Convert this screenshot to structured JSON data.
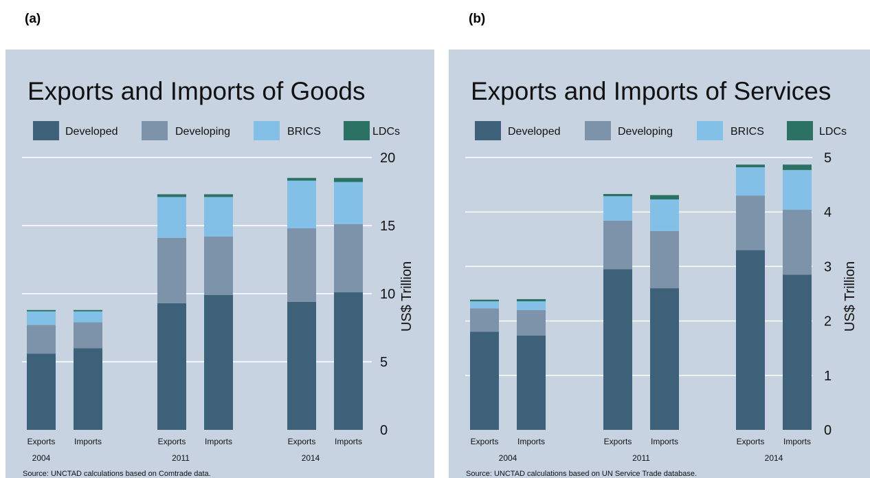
{
  "panels": [
    {
      "label": "(a)",
      "source": "Source: UNCTAD calculations based on Comtrade data.",
      "colors": {
        "Developed": "#3d6179",
        "Developing": "#7c93a9",
        "BRICS": "#83c0e8",
        "LDCs": "#2b7265"
      }
    },
    {
      "label": "(b)",
      "source": "Source: UNCTAD calculations based on UN Service Trade database.",
      "colors": {
        "Developed": "#3d6179",
        "Developing": "#7c93a9",
        "BRICS": "#83c0e8",
        "LDCs": "#2b7265"
      }
    }
  ],
  "chart_data": [
    {
      "type": "bar",
      "stacked": true,
      "title": "Exports and Imports of Goods",
      "ylabel": "US$ Trillion",
      "ylim": [
        0,
        20
      ],
      "yticks": [
        0,
        5,
        10,
        15,
        20
      ],
      "grid": true,
      "legend_position": "top",
      "categories": [
        "Exports",
        "Imports",
        "Exports",
        "Imports",
        "Exports",
        "Imports"
      ],
      "groups": [
        "2004",
        "2011",
        "2014"
      ],
      "series": [
        {
          "name": "Developed",
          "values": [
            5.6,
            6.0,
            9.3,
            9.9,
            9.4,
            10.1
          ]
        },
        {
          "name": "Developing",
          "values": [
            2.1,
            1.9,
            4.8,
            4.3,
            5.4,
            5.0
          ]
        },
        {
          "name": "BRICS",
          "values": [
            1.0,
            0.8,
            3.0,
            2.9,
            3.5,
            3.1
          ]
        },
        {
          "name": "LDCs",
          "values": [
            0.1,
            0.1,
            0.2,
            0.2,
            0.2,
            0.3
          ]
        }
      ]
    },
    {
      "type": "bar",
      "stacked": true,
      "title": "Exports and Imports of Services",
      "ylabel": "US$ Trillion",
      "ylim": [
        0,
        5
      ],
      "yticks": [
        0,
        1,
        2,
        3,
        4,
        5
      ],
      "grid": true,
      "legend_position": "top",
      "categories": [
        "Exports",
        "Imports",
        "Exports",
        "Imports",
        "Exports",
        "Imports"
      ],
      "groups": [
        "2004",
        "2011",
        "2014"
      ],
      "series": [
        {
          "name": "Developed",
          "values": [
            1.8,
            1.73,
            2.95,
            2.6,
            3.3,
            2.85
          ]
        },
        {
          "name": "Developing",
          "values": [
            0.43,
            0.47,
            0.89,
            1.05,
            1.0,
            1.19
          ]
        },
        {
          "name": "BRICS",
          "values": [
            0.13,
            0.16,
            0.45,
            0.58,
            0.52,
            0.73
          ]
        },
        {
          "name": "LDCs",
          "values": [
            0.03,
            0.04,
            0.04,
            0.08,
            0.05,
            0.1
          ]
        }
      ]
    }
  ]
}
